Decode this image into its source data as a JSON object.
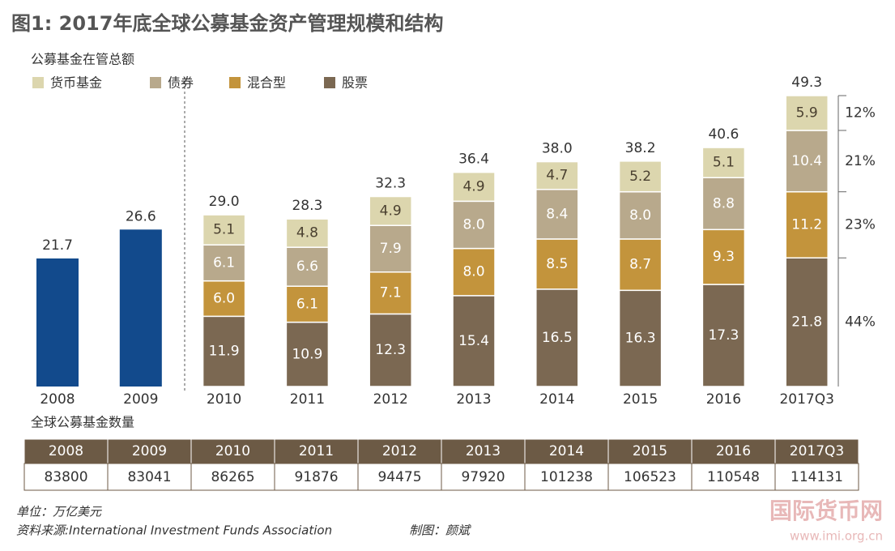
{
  "chart_data": {
    "type": "stacked-bar",
    "title": "图1: 2017年底全球公募基金资产管理规模和结构",
    "subtitle": "公募基金在管总额",
    "categories": [
      "2008",
      "2009",
      "2010",
      "2011",
      "2012",
      "2013",
      "2014",
      "2015",
      "2016",
      "2017Q3"
    ],
    "totals": {
      "color": "#124a8c",
      "values": [
        21.7,
        26.6,
        29.0,
        28.3,
        32.3,
        36.4,
        38.0,
        38.2,
        40.6,
        49.3
      ],
      "value_labels": [
        "21.7",
        "26.6",
        "29.0",
        "28.3",
        "32.3",
        "36.4",
        "38.0",
        "38.2",
        "40.6",
        "49.3"
      ]
    },
    "series": [
      {
        "name": "货币基金",
        "color": "#dcd6ae",
        "label_color": "#4a4030",
        "values": [
          null,
          null,
          5.1,
          4.8,
          4.9,
          4.9,
          4.7,
          5.2,
          5.1,
          5.9
        ],
        "value_labels": [
          null,
          null,
          "5.1",
          "4.8",
          "4.9",
          "4.9",
          "4.7",
          "5.2",
          "5.1",
          "5.9"
        ]
      },
      {
        "name": "债券",
        "color": "#b8a98c",
        "label_color": "#ffffff",
        "values": [
          null,
          null,
          6.1,
          6.6,
          7.9,
          8.0,
          8.4,
          8.0,
          8.8,
          10.4
        ],
        "value_labels": [
          null,
          null,
          "6.1",
          "6.6",
          "7.9",
          "8.0",
          "8.4",
          "8.0",
          "8.8",
          "10.4"
        ]
      },
      {
        "name": "混合型",
        "color": "#c3943c",
        "label_color": "#ffffff",
        "values": [
          null,
          null,
          6.0,
          6.1,
          7.1,
          8.0,
          8.5,
          8.7,
          9.3,
          11.2
        ],
        "value_labels": [
          null,
          null,
          "6.0",
          "6.1",
          "7.1",
          "8.0",
          "8.5",
          "8.7",
          "9.3",
          "11.2"
        ]
      },
      {
        "name": "股票",
        "color": "#7b6852",
        "label_color": "#ffffff",
        "values": [
          null,
          null,
          11.9,
          10.9,
          12.3,
          15.4,
          16.5,
          16.3,
          17.3,
          21.8
        ],
        "value_labels": [
          null,
          null,
          "11.9",
          "10.9",
          "12.3",
          "15.4",
          "16.5",
          "16.3",
          "17.3",
          "21.8"
        ]
      }
    ],
    "shares": {
      "values": [
        12,
        21,
        23,
        44
      ],
      "value_labels": [
        "12%",
        "21%",
        "23%",
        "44%"
      ]
    },
    "fund_count": {
      "title": "全球公募基金数量",
      "values": [
        83800,
        83041,
        86265,
        91876,
        94475,
        97920,
        101238,
        106523,
        110548,
        114131
      ]
    },
    "unit_note": "单位：万亿美元",
    "source": "资料来源:International Investment Funds Association",
    "author": "制图：颜斌",
    "watermark": "国际货币网",
    "watermark_url": "www.imi.org.cn"
  }
}
